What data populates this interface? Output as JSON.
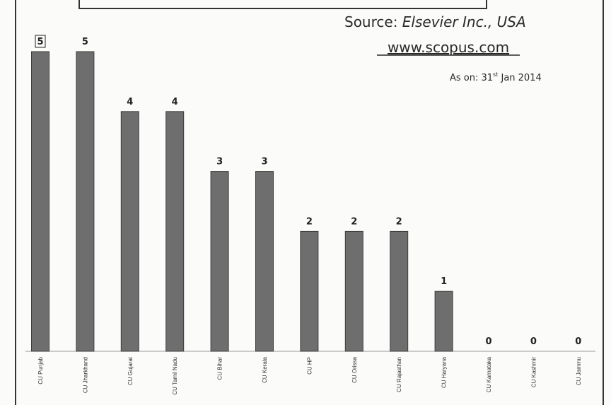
{
  "source": {
    "prefix": "Source: ",
    "publisher": "Elsevier Inc., USA",
    "url": "www.scopus.com",
    "date_prefix": "As on: 31",
    "date_sup": "st",
    "date_suffix": " Jan 2014"
  },
  "chart_data": {
    "type": "bar",
    "title": "",
    "xlabel": "",
    "ylabel": "",
    "categories": [
      "CU Punjab",
      "CU Jharkhand",
      "CU Gujarat",
      "CU Tamil Nadu",
      "CU Bihar",
      "CU Kerala",
      "CU HP",
      "CU Orissa",
      "CU Rajasthan",
      "CU Haryana",
      "CU Karnataka",
      "CU Kashmir",
      "CU Jammu"
    ],
    "values": [
      5,
      5,
      4,
      4,
      3,
      3,
      2,
      2,
      2,
      1,
      0,
      0,
      0
    ],
    "ylim": [
      0,
      5
    ],
    "grid": false,
    "legend": "none",
    "bar_color": "#6e6e6e"
  }
}
